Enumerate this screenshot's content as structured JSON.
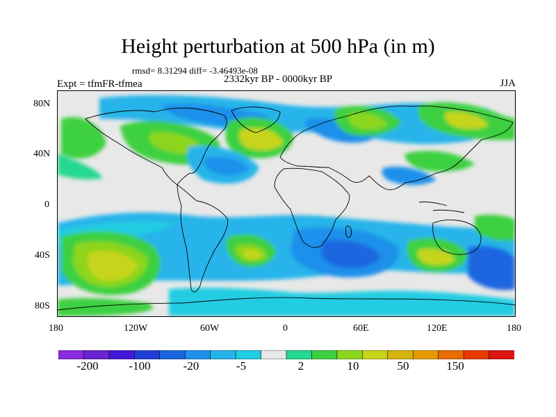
{
  "title": "Height perturbation at 500 hPa (in m)",
  "stats": "rmsd= 8.31294 diff= -3.46493e-08",
  "period": "2332kyr BP - 0000kyr BP",
  "experiment": "Expt = tfmFR-tfmea",
  "season": "JJA",
  "lat_labels": [
    "80N",
    "40N",
    "0",
    "40S",
    "80S"
  ],
  "lon_labels": [
    "180",
    "120W",
    "60W",
    "0",
    "60E",
    "120E",
    "180"
  ],
  "colorbar": {
    "labels": [
      "-200",
      "-100",
      "-20",
      "-5",
      "2",
      "10",
      "50",
      "150"
    ],
    "colors": [
      "#8a2be2",
      "#6a24cf",
      "#4318d6",
      "#1f3fd6",
      "#1a66e0",
      "#1e90ea",
      "#25b4ea",
      "#20cde2",
      "#e8e8e8",
      "#25d890",
      "#3cd040",
      "#8cd51e",
      "#c6d51a",
      "#d6b40a",
      "#e69a00",
      "#ea6b00",
      "#e63a00",
      "#dc1414"
    ]
  },
  "icons": {
    "coastline": "world-coastline-outline"
  }
}
